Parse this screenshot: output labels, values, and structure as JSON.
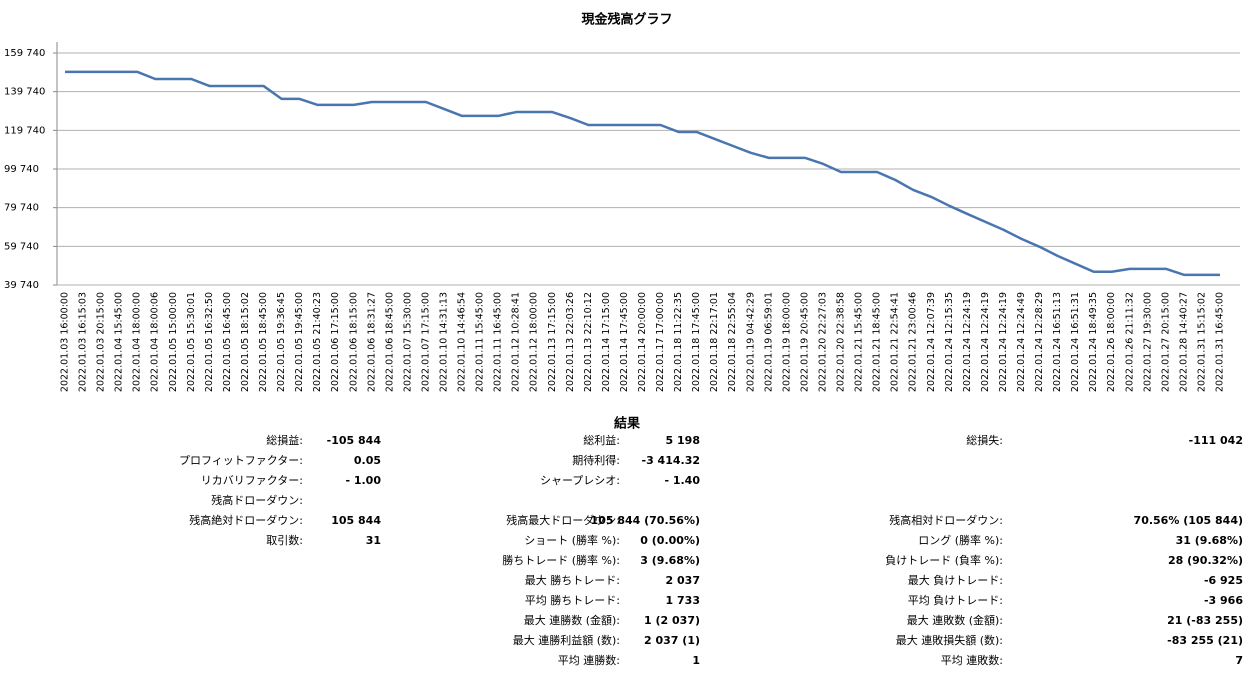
{
  "chart_data": {
    "type": "line",
    "title": "現金残高グラフ",
    "categories": [
      "2022.01.03 16:00:00",
      "2022.01.03 16:15:03",
      "2022.01.03 20:15:00",
      "2022.01.04 15:45:00",
      "2022.01.04 18:00:00",
      "2022.01.04 18:00:06",
      "2022.01.05 15:00:00",
      "2022.01.05 15:30:01",
      "2022.01.05 16:32:50",
      "2022.01.05 16:45:00",
      "2022.01.05 18:15:02",
      "2022.01.05 18:45:00",
      "2022.01.05 19:36:45",
      "2022.01.05 19:45:00",
      "2022.01.05 21:40:23",
      "2022.01.06 17:15:00",
      "2022.01.06 18:15:00",
      "2022.01.06 18:31:27",
      "2022.01.06 18:45:00",
      "2022.01.07 15:30:00",
      "2022.01.07 17:15:00",
      "2022.01.10 14:31:13",
      "2022.01.10 14:46:54",
      "2022.01.11 15:45:00",
      "2022.01.11 16:45:00",
      "2022.01.12 10:28:41",
      "2022.01.12 18:00:00",
      "2022.01.13 17:15:00",
      "2022.01.13 22:03:26",
      "2022.01.13 22:10:12",
      "2022.01.14 17:15:00",
      "2022.01.14 17:45:00",
      "2022.01.14 20:00:00",
      "2022.01.17 17:00:00",
      "2022.01.18 11:22:35",
      "2022.01.18 17:45:00",
      "2022.01.18 22:17:01",
      "2022.01.18 22:55:04",
      "2022.01.19 04:42:29",
      "2022.01.19 06:59:01",
      "2022.01.19 18:00:00",
      "2022.01.19 20:45:00",
      "2022.01.20 22:27:03",
      "2022.01.20 22:38:58",
      "2022.01.21 15:45:00",
      "2022.01.21 18:45:00",
      "2022.01.21 22:54:41",
      "2022.01.21 23:00:46",
      "2022.01.24 12:07:39",
      "2022.01.24 12:15:35",
      "2022.01.24 12:24:19",
      "2022.01.24 12:24:19",
      "2022.01.24 12:24:19",
      "2022.01.24 12:24:49",
      "2022.01.24 12:28:29",
      "2022.01.24 16:51:13",
      "2022.01.24 16:51:31",
      "2022.01.24 18:49:35",
      "2022.01.26 18:00:00",
      "2022.01.26 21:11:32",
      "2022.01.27 19:30:00",
      "2022.01.27 20:15:00",
      "2022.01.28 14:40:27",
      "2022.01.31 15:15:02",
      "2022.01.31 16:45:00"
    ],
    "values": [
      150000,
      150000,
      150000,
      150000,
      150000,
      146300,
      146300,
      146300,
      142700,
      142700,
      142700,
      142700,
      136000,
      136000,
      132900,
      132900,
      132900,
      134400,
      134400,
      134400,
      134400,
      130800,
      127200,
      127200,
      127200,
      129200,
      129200,
      129200,
      126100,
      122500,
      122500,
      122500,
      122500,
      122500,
      118900,
      118900,
      115300,
      111700,
      108100,
      105500,
      105500,
      105500,
      102400,
      98200,
      98200,
      98200,
      94100,
      88900,
      85300,
      80700,
      76500,
      72400,
      68300,
      63600,
      59500,
      54800,
      50700,
      46600,
      46600,
      48100,
      48100,
      48100,
      45000,
      45000,
      45000
    ],
    "color": "#4a76b0",
    "ylim": [
      39740,
      159740
    ],
    "yticks": [
      {
        "value": 39740,
        "label": "39 740"
      },
      {
        "value": 59740,
        "label": "59 740"
      },
      {
        "value": 79740,
        "label": "79 740"
      },
      {
        "value": 99740,
        "label": "99 740"
      },
      {
        "value": 119740,
        "label": "119 740"
      },
      {
        "value": 139740,
        "label": "139 740"
      },
      {
        "value": 159740,
        "label": "159 740"
      }
    ],
    "grid": true
  },
  "results": {
    "title": "結果",
    "columns": [
      [
        {
          "label": "総損益:",
          "value": "-105 844"
        },
        {
          "label": "プロフィットファクター:",
          "value": "0.05"
        },
        {
          "label": "リカバリファクター:",
          "value": "- 1.00"
        },
        {
          "label": "残高ドローダウン:"
        },
        {
          "label": "残高絶対ドローダウン:",
          "value": "105 844"
        },
        {
          "label": "取引数:",
          "value": "31"
        }
      ],
      [
        {
          "label": "総利益:",
          "value": "5 198"
        },
        {
          "label": "期待利得:",
          "value": "-3 414.32"
        },
        {
          "label": "シャープレシオ:",
          "value": "- 1.40"
        },
        null,
        {
          "label": "残高最大ドローダウン:",
          "value": "105 844 (70.56%)"
        },
        {
          "label": "ショート (勝率 %):",
          "value": "0 (0.00%)"
        },
        {
          "label": "勝ちトレード (勝率 %):",
          "value": "3 (9.68%)"
        },
        {
          "label": "最大 勝ちトレード:",
          "value": "2 037"
        },
        {
          "label": "平均 勝ちトレード:",
          "value": "1 733"
        },
        {
          "label": "最大 連勝数 (金額):",
          "value": "1 (2 037)"
        },
        {
          "label": "最大 連勝利益額 (数):",
          "value": "2 037 (1)"
        },
        {
          "label": "平均 連勝数:",
          "value": "1"
        }
      ],
      [
        {
          "label": "総損失:",
          "value": "-111 042"
        },
        null,
        null,
        null,
        {
          "label": "残高相対ドローダウン:",
          "value": "70.56% (105 844)"
        },
        {
          "label": "ロング (勝率 %):",
          "value": "31 (9.68%)"
        },
        {
          "label": "負けトレード (負率 %):",
          "value": "28 (90.32%)"
        },
        {
          "label": "最大 負けトレード:",
          "value": "-6 925"
        },
        {
          "label": "平均 負けトレード:",
          "value": "-3 966"
        },
        {
          "label": "最大 連敗数 (金額):",
          "value": "21 (-83 255)"
        },
        {
          "label": "最大 連敗損失額 (数):",
          "value": "-83 255 (21)"
        },
        {
          "label": "平均 連敗数:",
          "value": "7"
        }
      ]
    ]
  }
}
